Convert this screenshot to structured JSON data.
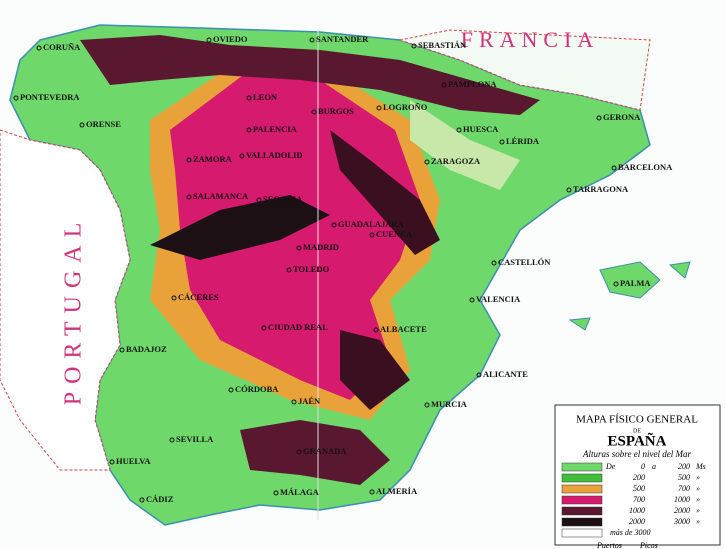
{
  "countries": {
    "france": "FRANCIA",
    "portugal": "PORTUGAL"
  },
  "cities": [
    "OVIEDO",
    "SANTANDER",
    "SEBASTIÁN",
    "CORUÑA",
    "PONTEVEDRA",
    "ORENSE",
    "LEON",
    "PALENCIA",
    "BURGOS",
    "LOGROÑO",
    "PAMPLONA",
    "HUESCA",
    "LÉRIDA",
    "GERONA",
    "BARCELONA",
    "TARRAGONA",
    "ZARAGOZA",
    "ZAMORA",
    "VALLADOLID",
    "SALAMANCA",
    "SEGOVIA",
    "GUADALAJARA",
    "MADRID",
    "CUENCA",
    "TOLEDO",
    "CASTELLÓN",
    "VALENCIA",
    "CÁCERES",
    "CIUDAD REAL",
    "BADAJOZ",
    "ALBACETE",
    "ALICANTE",
    "MURCIA",
    "JAÉN",
    "CÓRDOBA",
    "SEVILLA",
    "HUELVA",
    "GRANADA",
    "ALMERÍA",
    "MÁLAGA",
    "CÁDIZ",
    "PALMA"
  ],
  "legend": {
    "title": "MAPA FÍSICO GENERAL",
    "de": "DE",
    "country": "ESPAÑA",
    "subtitle": "Alturas sobre el nivel del Mar",
    "items": [
      {
        "from": "De",
        "a": "0",
        "b": "a",
        "c": "200",
        "unit": "Ms",
        "color": "#6fd86a"
      },
      {
        "a": "200",
        "c": "500",
        "unit": "»",
        "color": "#3fbf3a"
      },
      {
        "a": "500",
        "c": "700",
        "unit": "»",
        "color": "#e9a23a"
      },
      {
        "a": "700",
        "c": "1000",
        "unit": "»",
        "color": "#d61a6e"
      },
      {
        "a": "1000",
        "c": "2000",
        "unit": "»",
        "color": "#5a1830"
      },
      {
        "a": "2000",
        "c": "3000",
        "unit": "»",
        "color": "#1d1014"
      }
    ],
    "more": "más de 3000",
    "passes": "Puertos",
    "peaks": "Picos"
  }
}
